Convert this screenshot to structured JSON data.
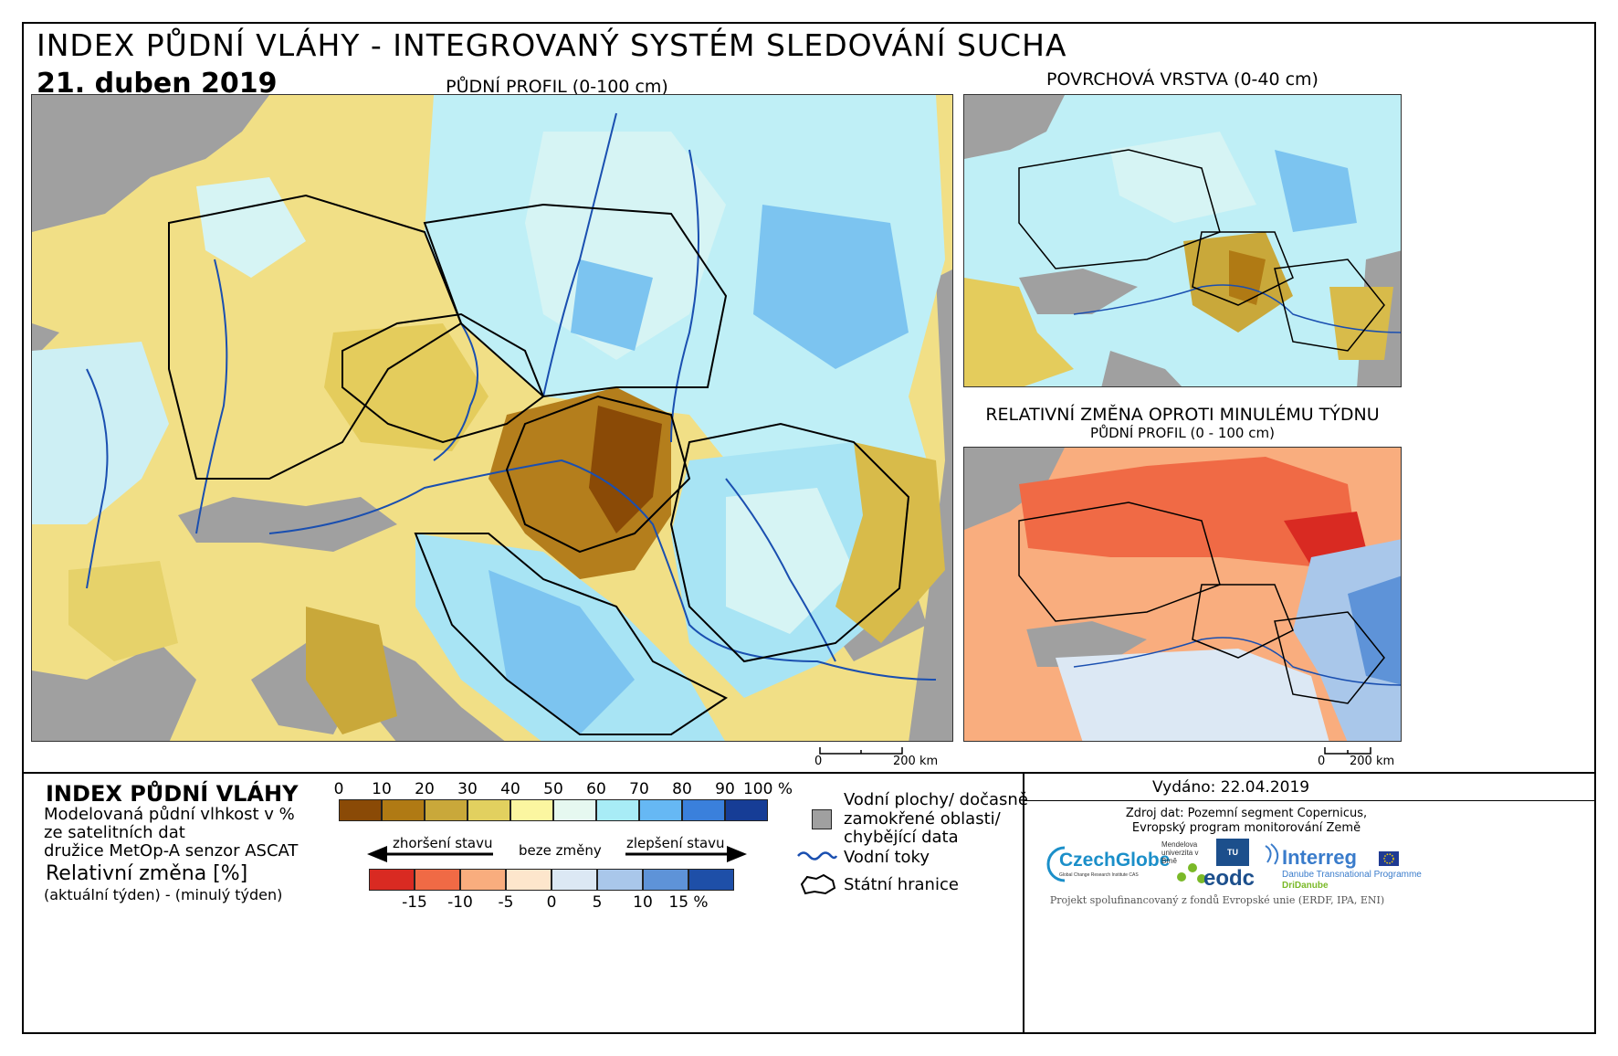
{
  "header": {
    "title": "INDEX PŮDNÍ VLÁHY - INTEGROVANÝ SYSTÉM SLEDOVÁNÍ SUCHA",
    "date": "21. duben 2019"
  },
  "maps": {
    "main_label": "PŮDNÍ PROFIL (0-100 cm)",
    "surface_label": "POVRCHOVÁ VRSTVA (0-40 cm)",
    "change_label": "RELATIVNÍ ZMĚNA OPROTI MINULÉMU TÝDNU",
    "change_sublabel": "PŮDNÍ PROFIL (0 - 100 cm)",
    "main_scale": {
      "zero": "0",
      "end": "200 km"
    },
    "change_scale": {
      "zero": "0",
      "end": "200 km"
    }
  },
  "legend": {
    "index_title": "INDEX PŮDNÍ VLÁHY",
    "index_desc_1": "Modelovaná půdní vlhkost v %",
    "index_desc_2": "ze satelitních dat",
    "index_desc_3": "družice MetOp-A senzor ASCAT",
    "change_title": "Relativní změna [%]",
    "change_desc": "(aktuální týden) - (minulý týden)",
    "index_ticks": [
      "0",
      "10",
      "20",
      "30",
      "40",
      "50",
      "60",
      "70",
      "80",
      "90",
      "100 %"
    ],
    "index_colors": [
      "#8a4a06",
      "#b07a14",
      "#c9a83a",
      "#e2d05f",
      "#fbf6a0",
      "#e6f8f0",
      "#a8ecf6",
      "#66b8f4",
      "#3a80dc",
      "#163d96"
    ],
    "worse_label": "zhoršení stavu",
    "same_label": "beze změny",
    "better_label": "zlepšení stavu",
    "change_ticks": [
      "-15",
      "-10",
      "-5",
      "0",
      "5",
      "10",
      "15 %"
    ],
    "change_colors": [
      "#d92a22",
      "#f06a45",
      "#f9ad7e",
      "#fde6cc",
      "#dce8f4",
      "#a9c7ea",
      "#5e93d8",
      "#1e4fa8"
    ],
    "water_label": "Vodní plochy/ dočasně zamokřené oblasti/ chybějící data",
    "water_label_1": "Vodní plochy/ dočasně",
    "water_label_2": "zamokřené oblasti/",
    "water_label_3": "chybějící data",
    "rivers_label": "Vodní toky",
    "borders_label": "Státní hranice"
  },
  "info": {
    "issued": "Vydáno: 22.04.2019",
    "source_1": "Zdroj dat: Pozemní segment Copernicus,",
    "source_2": "Evropský program monitorování Země",
    "funding": "Projekt spolufinancovaný z fondů Evropské unie (ERDF, IPA, ENI)"
  },
  "logos": {
    "czechglobe": "CzechGlobe",
    "czechglobe_sub": "Global Change Research Institute CAS",
    "mendel": "Mendelova univerzita v Brně",
    "tu": "TU WIEN",
    "eodc": "eodc",
    "interreg": "Interreg",
    "interreg_sub": "Danube Transnational Programme",
    "dridanube": "DriDanube"
  },
  "colors": {
    "grey_land": "#a0a0a0",
    "river": "#1a4fb0",
    "border": "#000000"
  }
}
